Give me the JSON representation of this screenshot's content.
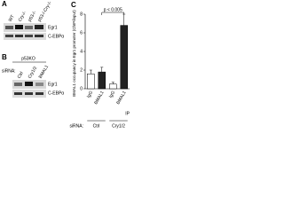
{
  "panel_a": {
    "label": "A",
    "lanes": [
      "WT",
      "Cry-/-",
      "p53-/-",
      "p53-/-Cry-/-"
    ],
    "rows": [
      "Egr1",
      "C-EBPα"
    ]
  },
  "panel_b": {
    "label": "B",
    "header": "p53KO",
    "lanes": [
      "Ctrl",
      "Cry1/2",
      "BMAL1"
    ],
    "siRNA": "siRNA:",
    "rows": [
      "Egr1",
      "C-EBPα"
    ]
  },
  "chart_data": {
    "type": "bar",
    "label": "C",
    "y_label": "BMAL1 occupancy in Egr1 promoter (ChIP/input)",
    "categories": [
      "IgG",
      "BMAL1",
      "IgG",
      "BMAL1"
    ],
    "values": [
      1.6,
      1.8,
      0.5,
      6.8
    ],
    "errors": [
      0.4,
      0.5,
      0.2,
      1.2
    ],
    "colors": [
      "#ffffff",
      "#222222",
      "#ffffff",
      "#222222"
    ],
    "groups": [
      "Ctrl",
      "Cry1/2"
    ],
    "group_title": "siRNA:",
    "x_label": "IP",
    "annotation": "p < 0.005",
    "ylim": [
      0,
      8
    ],
    "yticks": [
      0,
      2,
      4,
      6,
      8
    ]
  }
}
